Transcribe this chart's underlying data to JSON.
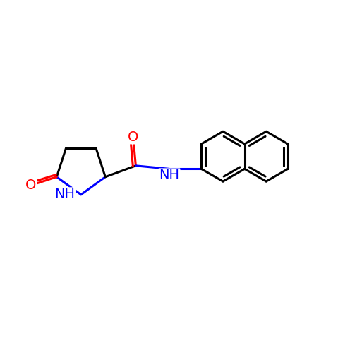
{
  "background_color": "#ffffff",
  "bond_color": "#000000",
  "nitrogen_color": "#0000ff",
  "oxygen_color": "#ff0000",
  "bond_width": 2.2,
  "font_size": 14,
  "figsize": [
    4.79,
    4.79
  ],
  "dpi": 100,
  "xlim": [
    -2.0,
    8.5
  ],
  "ylim": [
    1.5,
    7.5
  ]
}
